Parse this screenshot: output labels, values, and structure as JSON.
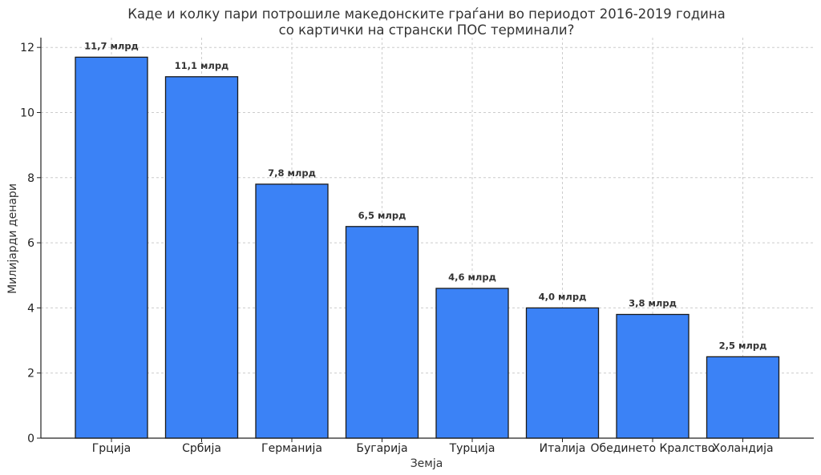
{
  "chart_data": {
    "type": "bar",
    "title_line1": "Каде и колку пари потрошиле македонските граѓани во периодот 2016-2019 година",
    "title_line2": "со картички на странски ПОС терминали?",
    "xlabel": "Земја",
    "ylabel": "Милијарди денари",
    "categories": [
      "Грција",
      "Србија",
      "Германија",
      "Бугарија",
      "Турција",
      "Италија",
      "Обединето Кралство",
      "Холандија"
    ],
    "values": [
      11.7,
      11.1,
      7.8,
      6.5,
      4.6,
      4.0,
      3.8,
      2.5
    ],
    "data_labels": [
      "11,7 млрд",
      "11,1 млрд",
      "7,8 млрд",
      "6,5 млрд",
      "4,6 млрд",
      "4,0 млрд",
      "3,8 млрд",
      "2,5 млрд"
    ],
    "yticks": [
      0,
      2,
      4,
      6,
      8,
      10,
      12
    ],
    "ylim": [
      0,
      12.3
    ],
    "grid": true,
    "bar_color": "#3b82f6",
    "bar_edge_color": "#1a1a1a"
  }
}
